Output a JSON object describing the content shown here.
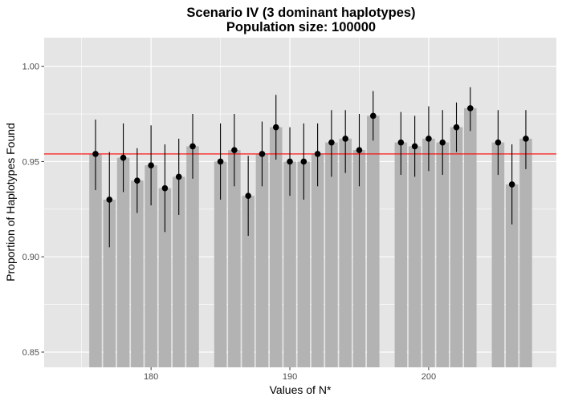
{
  "chart_data": {
    "type": "bar",
    "title": "Scenario IV (3 dominant haplotypes)",
    "subtitle": "Population size: 100000",
    "xlabel": "Values of N*",
    "ylabel": "Proportion of Haplotypes Found",
    "xlim": [
      172.3,
      209.2
    ],
    "ylim": [
      0.842,
      1.015
    ],
    "x_ticks": [
      180,
      190,
      200
    ],
    "y_ticks": [
      0.85,
      0.9,
      0.95,
      1.0
    ],
    "x_tick_labels": [
      "180",
      "190",
      "200"
    ],
    "y_tick_labels": [
      "0.85",
      "0.90",
      "0.95",
      "1.00"
    ],
    "reference_line": {
      "y": 0.954,
      "color": "#ff0000"
    },
    "grid": true,
    "colors": {
      "panel": "#e5e5e5",
      "grid": "#ffffff",
      "bar": "#b3b3b3",
      "point": "#000000"
    },
    "x": [
      176,
      177,
      178,
      179,
      180,
      181,
      182,
      183,
      185,
      186,
      187,
      188,
      189,
      190,
      191,
      192,
      193,
      194,
      195,
      196,
      198,
      199,
      200,
      201,
      202,
      203,
      205,
      206,
      207
    ],
    "values": [
      0.954,
      0.93,
      0.952,
      0.94,
      0.948,
      0.936,
      0.942,
      0.958,
      0.95,
      0.956,
      0.932,
      0.954,
      0.968,
      0.95,
      0.95,
      0.954,
      0.96,
      0.962,
      0.956,
      0.974,
      0.96,
      0.958,
      0.962,
      0.96,
      0.968,
      0.978,
      0.96,
      0.938,
      0.962
    ],
    "lower": [
      0.935,
      0.905,
      0.934,
      0.923,
      0.927,
      0.913,
      0.922,
      0.941,
      0.93,
      0.937,
      0.911,
      0.937,
      0.951,
      0.932,
      0.93,
      0.937,
      0.942,
      0.944,
      0.937,
      0.961,
      0.943,
      0.942,
      0.945,
      0.943,
      0.955,
      0.966,
      0.943,
      0.917,
      0.946
    ],
    "upper": [
      0.972,
      0.955,
      0.97,
      0.957,
      0.969,
      0.959,
      0.962,
      0.975,
      0.97,
      0.975,
      0.953,
      0.971,
      0.985,
      0.968,
      0.97,
      0.97,
      0.977,
      0.977,
      0.975,
      0.987,
      0.976,
      0.974,
      0.979,
      0.977,
      0.981,
      0.989,
      0.977,
      0.959,
      0.977
    ]
  }
}
